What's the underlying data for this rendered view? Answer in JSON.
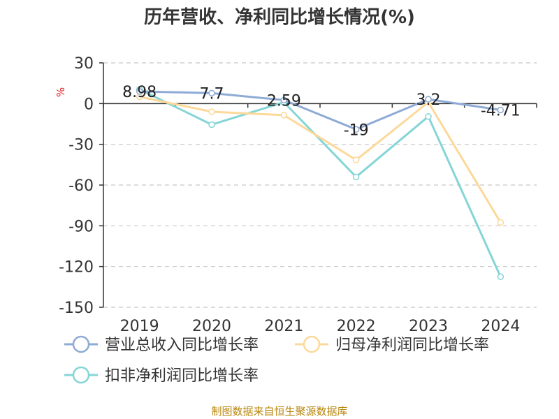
{
  "title": "历年营收、净利同比增长情况(%)",
  "unit": "%",
  "source": "制图数据来自恒生聚源数据库",
  "chart_data": {
    "type": "line",
    "title": "历年营收、净利同比增长情况(%)",
    "ylabel": "%",
    "categories": [
      "2019",
      "2020",
      "2021",
      "2022",
      "2023",
      "2024"
    ],
    "ylim": [
      -150,
      30
    ],
    "yticks": [
      30,
      0,
      -30,
      -60,
      -90,
      -120,
      -150
    ],
    "ytick_labels": [
      "30",
      "0",
      "-30",
      "-60",
      "-90",
      "-120",
      "-150"
    ],
    "grid": true,
    "legend": "bottom",
    "series": [
      {
        "name": "营业总收入同比增长率",
        "color": "#8eaad6",
        "values": [
          8.98,
          7.7,
          2.59,
          -19,
          3.2,
          -4.71
        ],
        "labels": [
          "8.98",
          "7.7",
          "2.59",
          "-19",
          "3.2",
          "-4.71"
        ]
      },
      {
        "name": "归母净利润同比增长率",
        "color": "#fcd99a",
        "values": [
          5,
          -6,
          -8.5,
          -41.5,
          1,
          -87.5
        ]
      },
      {
        "name": "扣非净利润同比增长率",
        "color": "#86d5d6",
        "values": [
          10.5,
          -15.5,
          1,
          -54,
          -9.5,
          -127.5
        ]
      }
    ]
  }
}
